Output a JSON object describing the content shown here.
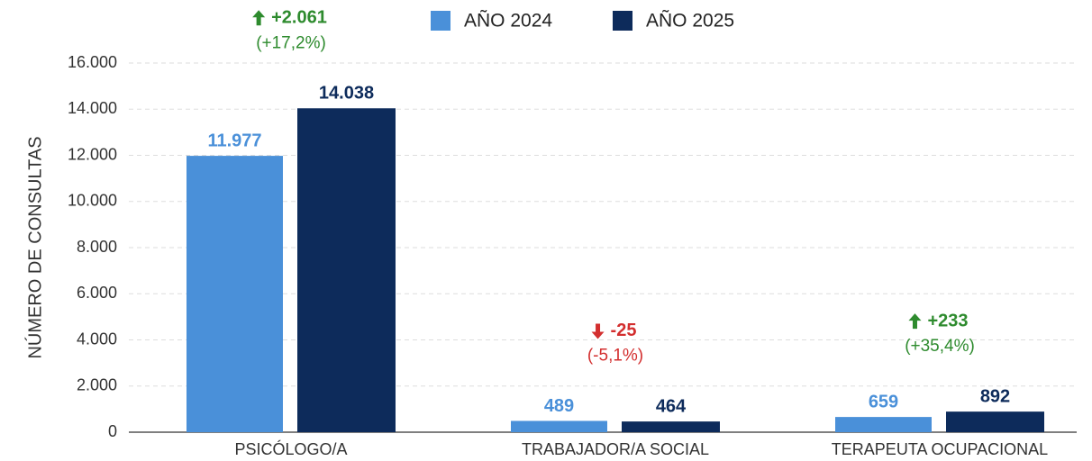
{
  "chart_data": {
    "type": "bar",
    "categories": [
      "PSICÓLOGO/A",
      "TRABAJADOR/A SOCIAL",
      "TERAPEUTA OCUPACIONAL"
    ],
    "series": [
      {
        "name": "AÑO 2024",
        "color": "#4a90d9",
        "values": [
          11977,
          489,
          659
        ],
        "value_labels": [
          "11.977",
          "489",
          "659"
        ]
      },
      {
        "name": "AÑO 2025",
        "color": "#0d2b5b",
        "values": [
          14038,
          464,
          892
        ],
        "value_labels": [
          "14.038",
          "464",
          "892"
        ]
      }
    ],
    "ylabel": "NÚMERO DE CONSULTAS",
    "ylim": [
      0,
      16000
    ],
    "yticks": [
      0,
      {
        "value": 2000,
        "label": "2.000"
      },
      {
        "value": 4000,
        "label": "4.000"
      },
      {
        "value": 6000,
        "label": "6.000"
      },
      {
        "value": 8000,
        "label": "8.000"
      },
      {
        "value": 10000,
        "label": "10.000"
      },
      {
        "value": 12000,
        "label": "12.000"
      },
      {
        "value": 14000,
        "label": "14.000"
      },
      {
        "value": 16000,
        "label": "16.000"
      }
    ],
    "grid": true,
    "legend": "top",
    "annotations": [
      {
        "change": "+2.061",
        "percent": "(+17,2%)",
        "direction": "up",
        "color": "#2e8b2e"
      },
      {
        "change": "-25",
        "percent": "(-5,1%)",
        "direction": "down",
        "color": "#d32f2f"
      },
      {
        "change": "+233",
        "percent": "(+35,4%)",
        "direction": "up",
        "color": "#2e8b2e"
      }
    ]
  }
}
